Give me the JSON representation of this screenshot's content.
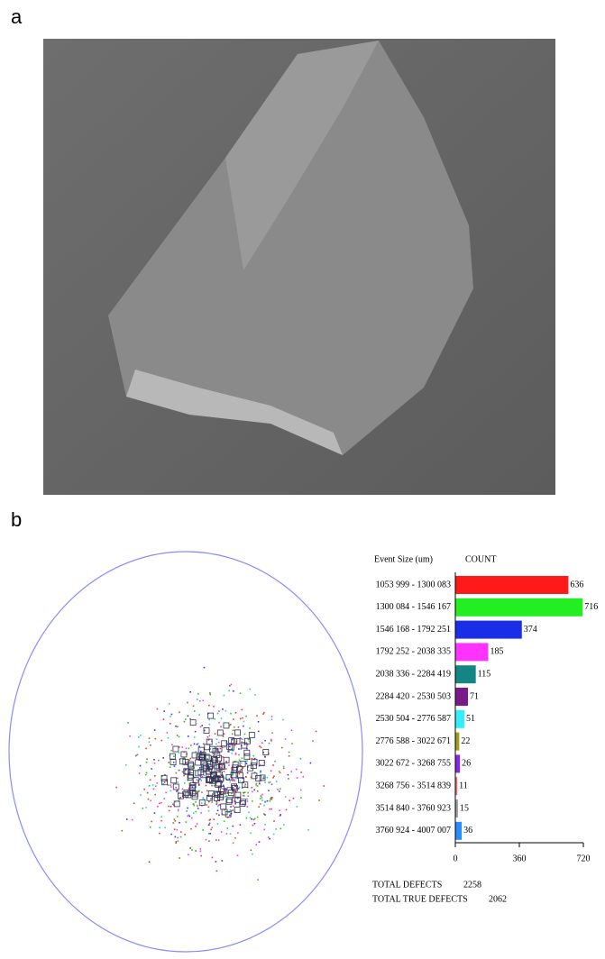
{
  "panel_labels": [
    "a",
    "b"
  ],
  "chart_data": {
    "type": "barh",
    "header_category": "Event Size (um)",
    "header_value": "COUNT",
    "categories": [
      "1053 999 - 1300 083",
      "1300 084 - 1546 167",
      "1546 168 - 1792 251",
      "1792 252 - 2038 335",
      "2038 336 - 2284 419",
      "2284 420 - 2530 503",
      "2530 504 - 2776 587",
      "2776 588 - 3022 671",
      "3022 672 - 3268 755",
      "3268 756 - 3514 839",
      "3514 840 - 3760 923",
      "3760 924 - 4007 007"
    ],
    "values": [
      636,
      716,
      374,
      185,
      115,
      71,
      51,
      22,
      26,
      11,
      15,
      36
    ],
    "colors": [
      "#ff1a1a",
      "#22ee22",
      "#1a2ee8",
      "#ff33ff",
      "#138585",
      "#7a1a8a",
      "#33eeff",
      "#a09a20",
      "#8a22e8",
      "#ff6688",
      "#a0a0a0",
      "#2a8aff"
    ],
    "xlim": [
      0,
      720
    ],
    "xticks": [
      0,
      360,
      720
    ],
    "totals": [
      {
        "label": "TOTAL DEFECTS",
        "value": 2258
      },
      {
        "label": "TOTAL TRUE DEFECTS",
        "value": 2062
      }
    ]
  }
}
